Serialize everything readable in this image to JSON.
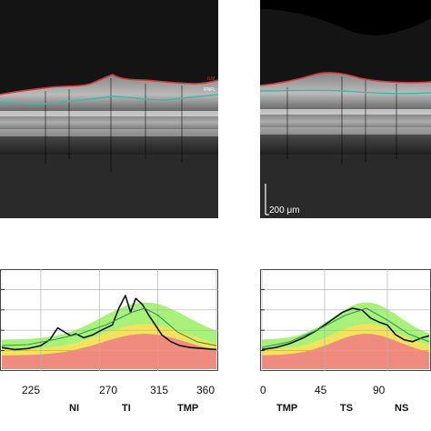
{
  "oct_scans": {
    "left": {
      "layer_labels": [
        "ILM",
        "RNFL"
      ],
      "ilm_color": "#d23a3a",
      "rnfl_color": "#3fb8a4"
    },
    "right": {
      "scale_bar_label": "200 μm",
      "ilm_color": "#d23a3a",
      "rnfl_color": "#3fb8a4"
    }
  },
  "chart_data": [
    {
      "type": "line",
      "id": "left-profile",
      "xlim": [
        195,
        360
      ],
      "x_ticks": [
        "225",
        "270",
        "315",
        "360"
      ],
      "sector_labels": [
        "NI",
        "TI",
        "TMP"
      ],
      "bands": {
        "red": "#f08b80",
        "yellow": "#f2e35c",
        "green": "#a8f27a"
      },
      "series": [
        {
          "color": "#111111",
          "x": [
            195,
            205,
            215,
            225,
            232,
            238,
            243,
            248,
            252,
            258,
            265,
            272,
            280,
            285,
            290,
            294,
            298,
            303,
            308,
            313,
            318,
            325,
            332,
            340,
            350,
            360
          ],
          "y": [
            0.22,
            0.2,
            0.21,
            0.24,
            0.3,
            0.42,
            0.38,
            0.34,
            0.36,
            0.32,
            0.35,
            0.4,
            0.45,
            0.62,
            0.75,
            0.58,
            0.72,
            0.66,
            0.55,
            0.45,
            0.35,
            0.28,
            0.24,
            0.22,
            0.21,
            0.2
          ]
        },
        {
          "color": "#2c9a5a",
          "x": [
            195,
            215,
            235,
            255,
            275,
            295,
            305,
            315,
            330,
            345,
            360
          ],
          "y": [
            0.24,
            0.25,
            0.3,
            0.36,
            0.45,
            0.58,
            0.62,
            0.55,
            0.38,
            0.28,
            0.24
          ]
        }
      ]
    },
    {
      "type": "line",
      "id": "right-profile",
      "xlim": [
        0,
        120
      ],
      "x_ticks": [
        "0",
        "45",
        "90"
      ],
      "sector_labels": [
        "TMP",
        "TS",
        "NS"
      ],
      "bands": {
        "red": "#f08b80",
        "yellow": "#f2e35c",
        "green": "#a8f27a"
      },
      "series": [
        {
          "color": "#111111",
          "x": [
            0,
            10,
            20,
            30,
            40,
            50,
            58,
            65,
            72,
            78,
            84,
            90,
            96,
            102,
            108,
            115,
            120
          ],
          "y": [
            0.2,
            0.22,
            0.26,
            0.32,
            0.4,
            0.5,
            0.58,
            0.62,
            0.6,
            0.52,
            0.48,
            0.45,
            0.35,
            0.3,
            0.28,
            0.32,
            0.34
          ]
        },
        {
          "color": "#2c9a5a",
          "x": [
            0,
            20,
            40,
            60,
            75,
            90,
            105,
            120
          ],
          "y": [
            0.22,
            0.28,
            0.4,
            0.55,
            0.62,
            0.5,
            0.36,
            0.28
          ]
        }
      ]
    }
  ]
}
